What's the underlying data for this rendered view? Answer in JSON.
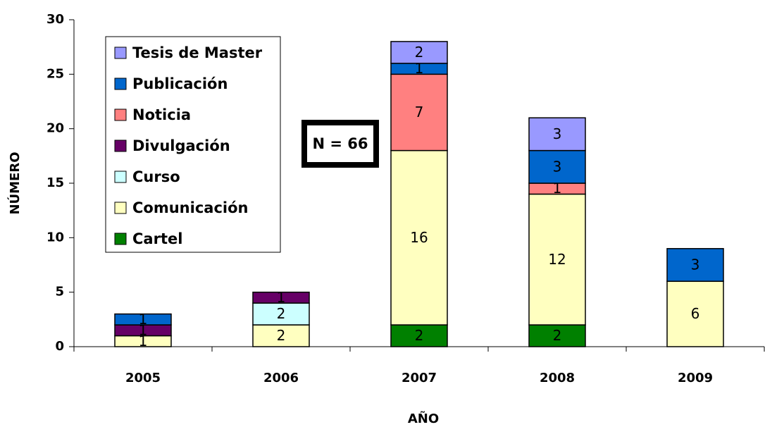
{
  "chart_data": {
    "type": "stacked_bar",
    "x_label": "AÑO",
    "y_label": "NÚMERO",
    "annotation": "N = 66",
    "categories": [
      "2005",
      "2006",
      "2007",
      "2008",
      "2009"
    ],
    "series": [
      {
        "name": "Cartel",
        "color": "#008000",
        "values": [
          null,
          null,
          2,
          2,
          null
        ]
      },
      {
        "name": "Comunicación",
        "color": "#ffffc0",
        "values": [
          1,
          2,
          16,
          12,
          6
        ]
      },
      {
        "name": "Curso",
        "color": "#ccffff",
        "values": [
          null,
          2,
          null,
          null,
          null
        ]
      },
      {
        "name": "Divulgación",
        "color": "#660066",
        "values": [
          1,
          1,
          null,
          null,
          null
        ]
      },
      {
        "name": "Noticia",
        "color": "#ff8080",
        "values": [
          null,
          null,
          7,
          1,
          null
        ]
      },
      {
        "name": "Publicación",
        "color": "#0066cc",
        "values": [
          1,
          null,
          1,
          3,
          3
        ]
      },
      {
        "name": "Tesis de Master",
        "color": "#9999ff",
        "values": [
          null,
          null,
          2,
          3,
          null
        ]
      }
    ],
    "ylim": [
      0,
      30
    ],
    "yticks": [
      0,
      5,
      10,
      15,
      20,
      25,
      30
    ],
    "legend": "upper left"
  }
}
